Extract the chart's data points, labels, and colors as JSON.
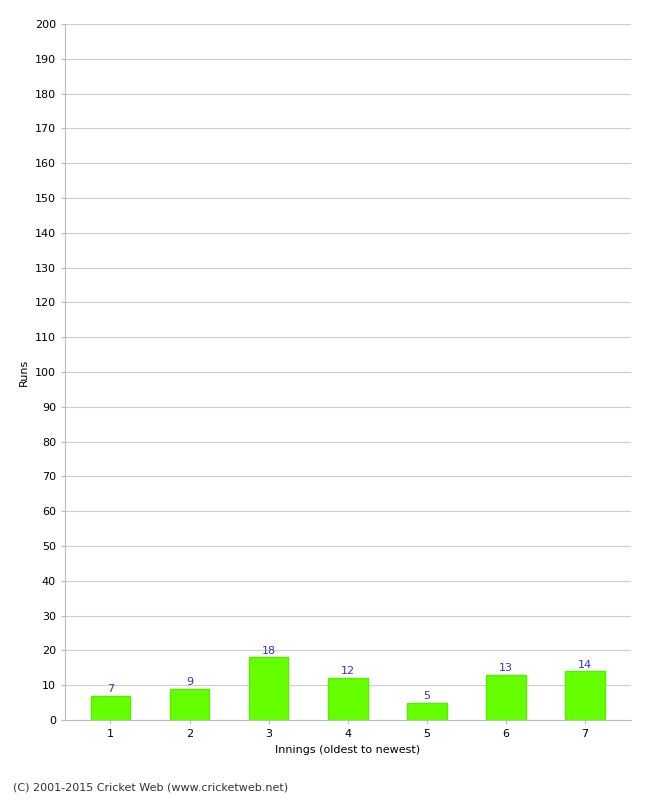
{
  "categories": [
    "1",
    "2",
    "3",
    "4",
    "5",
    "6",
    "7"
  ],
  "values": [
    7,
    9,
    18,
    12,
    5,
    13,
    14
  ],
  "bar_color": "#66ff00",
  "bar_edge_color": "#55ee00",
  "value_label_color": "#3333cc",
  "xlabel": "Innings (oldest to newest)",
  "ylabel": "Runs",
  "ylim": [
    0,
    200
  ],
  "yticks": [
    0,
    10,
    20,
    30,
    40,
    50,
    60,
    70,
    80,
    90,
    100,
    110,
    120,
    130,
    140,
    150,
    160,
    170,
    180,
    190,
    200
  ],
  "footer": "(C) 2001-2015 Cricket Web (www.cricketweb.net)",
  "background_color": "#ffffff",
  "grid_color": "#cccccc",
  "axis_label_fontsize": 8,
  "tick_label_fontsize": 8,
  "value_label_fontsize": 8,
  "footer_fontsize": 8
}
